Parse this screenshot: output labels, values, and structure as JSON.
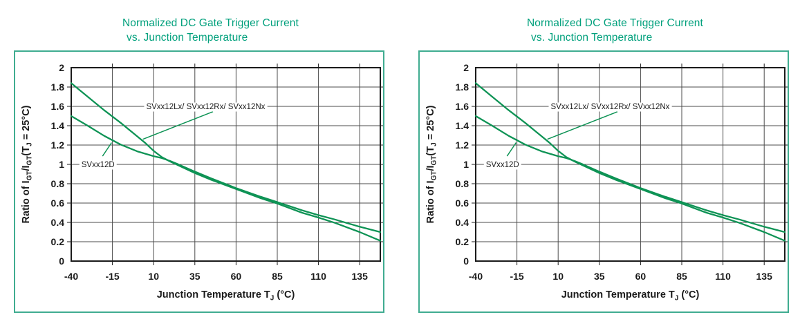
{
  "colors": {
    "title": "#00A07C",
    "box_border": "#3FAC90",
    "curve": "#0E9355",
    "grid": "#4B4B4B",
    "frame": "#1A1A1A",
    "text": "#1A1A1A",
    "background": "#FFFFFF"
  },
  "chart_data": {
    "type": "line",
    "title_lines": [
      "Normalized DC Gate Trigger Current",
      "vs. Junction Temperature"
    ],
    "xlabel_segments": [
      {
        "t": "Junction Temperature T"
      },
      {
        "t": "J",
        "sub": true
      },
      {
        "t": " (°C)"
      }
    ],
    "ylabel_segments": [
      {
        "t": "Ratio of I"
      },
      {
        "t": "GT",
        "sub": true
      },
      {
        "t": "/I"
      },
      {
        "t": "GT",
        "sub": true
      },
      {
        "t": "(T"
      },
      {
        "t": "J",
        "sub": true
      },
      {
        "t": " = 25°C)"
      }
    ],
    "xlim": [
      -40,
      147.5
    ],
    "ylim": [
      0,
      2
    ],
    "grid": true,
    "x_ticks": [
      {
        "v": -40,
        "label": "-40"
      },
      {
        "v": -15,
        "label": "-15"
      },
      {
        "v": 10,
        "label": "10"
      },
      {
        "v": 35,
        "label": "35"
      },
      {
        "v": 60,
        "label": "60"
      },
      {
        "v": 85,
        "label": "85"
      },
      {
        "v": 110,
        "label": "110"
      },
      {
        "v": 135,
        "label": "135"
      }
    ],
    "y_ticks": [
      {
        "v": 0,
        "label": "0"
      },
      {
        "v": 0.2,
        "label": "0.2"
      },
      {
        "v": 0.4,
        "label": "0.4"
      },
      {
        "v": 0.6,
        "label": "0.6"
      },
      {
        "v": 0.8,
        "label": "0.8"
      },
      {
        "v": 1,
        "label": "1"
      },
      {
        "v": 1.2,
        "label": "1.2"
      },
      {
        "v": 1.4,
        "label": "1.4"
      },
      {
        "v": 1.6,
        "label": "1.6"
      },
      {
        "v": 1.8,
        "label": "1.8"
      },
      {
        "v": 2,
        "label": "2"
      }
    ],
    "series": [
      {
        "name": "SVxx12Lx/ SVxx12Rx/ SVxx12Nx",
        "points": [
          [
            -40,
            1.84
          ],
          [
            -30,
            1.7
          ],
          [
            -20,
            1.56
          ],
          [
            -10,
            1.43
          ],
          [
            0,
            1.29
          ],
          [
            5,
            1.22
          ],
          [
            10,
            1.14
          ],
          [
            15,
            1.075
          ],
          [
            20,
            1.03
          ],
          [
            25,
            0.99
          ],
          [
            35,
            0.91
          ],
          [
            45,
            0.84
          ],
          [
            60,
            0.745
          ],
          [
            75,
            0.65
          ],
          [
            85,
            0.595
          ],
          [
            100,
            0.5
          ],
          [
            110,
            0.45
          ],
          [
            120,
            0.395
          ],
          [
            135,
            0.3
          ],
          [
            147.5,
            0.21
          ]
        ]
      },
      {
        "name": "SVxx12D",
        "points": [
          [
            -40,
            1.5
          ],
          [
            -30,
            1.4
          ],
          [
            -20,
            1.295
          ],
          [
            -10,
            1.205
          ],
          [
            0,
            1.135
          ],
          [
            10,
            1.085
          ],
          [
            15,
            1.065
          ],
          [
            20,
            1.035
          ],
          [
            25,
            1.0
          ],
          [
            35,
            0.925
          ],
          [
            45,
            0.855
          ],
          [
            60,
            0.755
          ],
          [
            75,
            0.665
          ],
          [
            85,
            0.61
          ],
          [
            100,
            0.525
          ],
          [
            110,
            0.475
          ],
          [
            120,
            0.43
          ],
          [
            135,
            0.355
          ],
          [
            147.5,
            0.3
          ]
        ]
      }
    ],
    "annotations": [
      {
        "text": "SVxx12Lx/ SVxx12Rx/ SVxx12Nx",
        "tx": 5.5,
        "ty": 1.6,
        "anchor": "start",
        "leader": {
          "x1": 46,
          "y1": 1.545,
          "x2": 3.5,
          "y2": 1.26
        }
      },
      {
        "text": "SVxx12D",
        "tx": -33.8,
        "ty": 1.0,
        "anchor": "start",
        "leader": {
          "x1": -21,
          "y1": 1.085,
          "x2": -15.5,
          "y2": 1.225
        }
      }
    ]
  }
}
